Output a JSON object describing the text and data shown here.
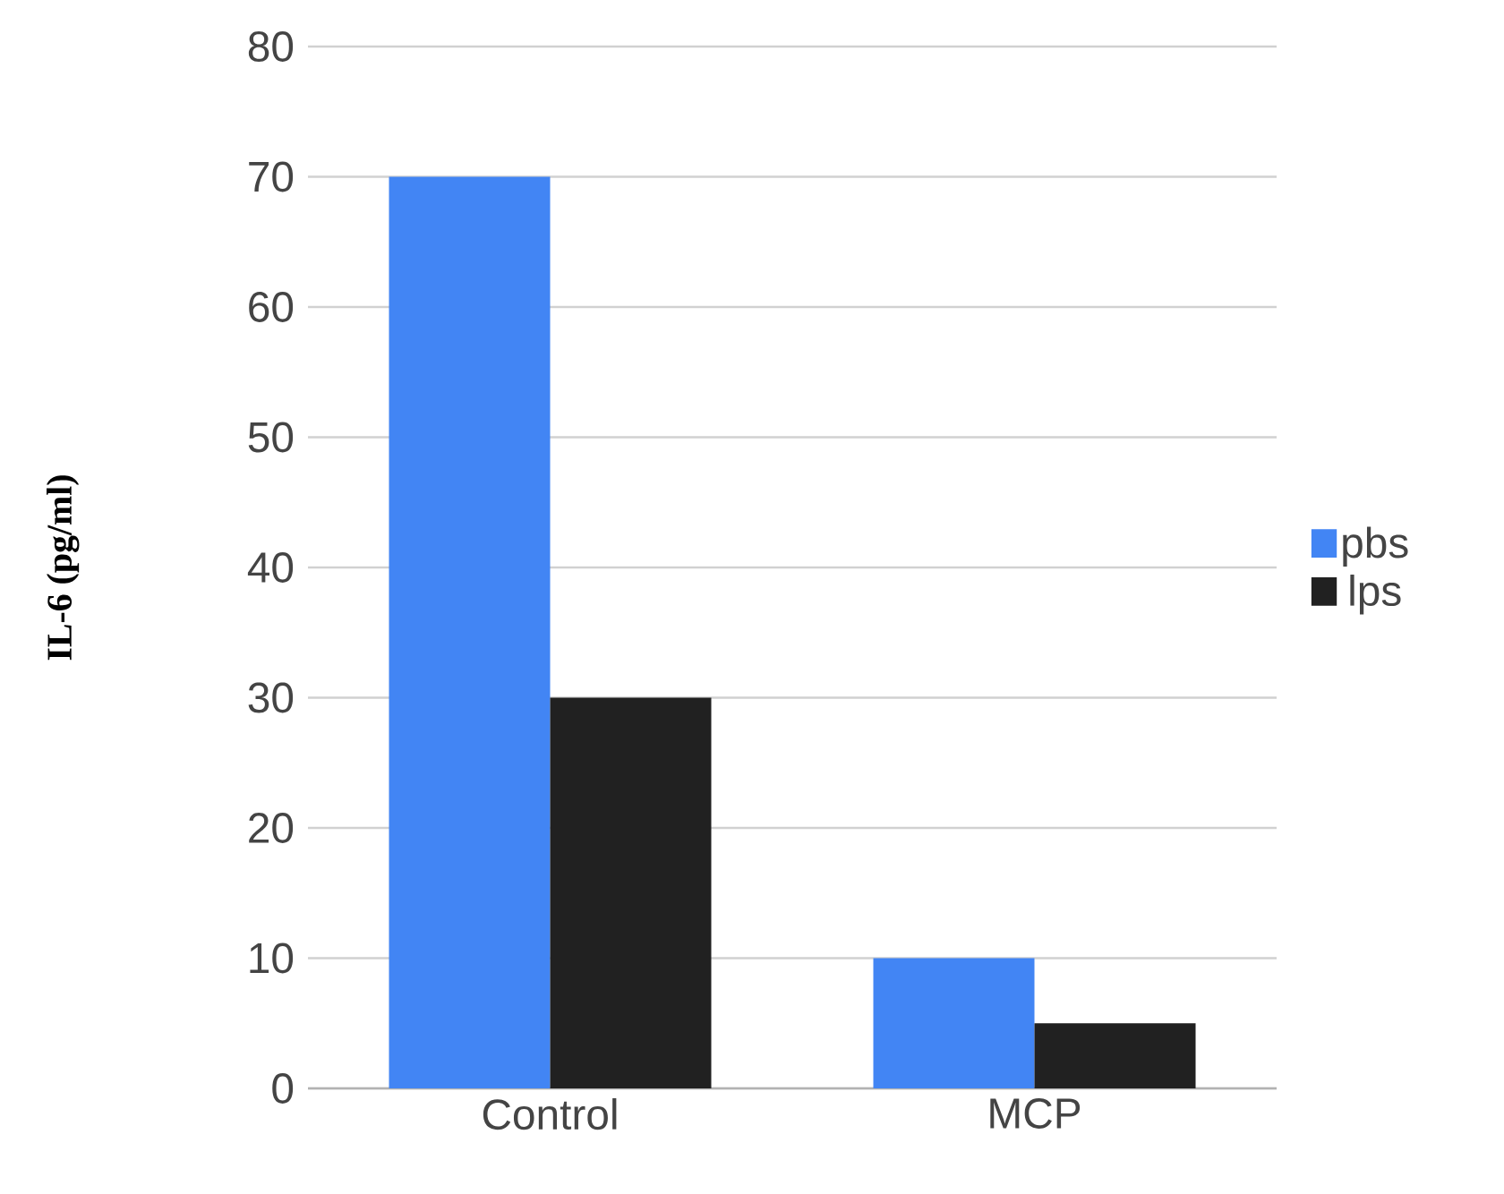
{
  "chart_data": {
    "type": "bar",
    "ylabel": "IL-6 (pg/ml)",
    "categories": [
      "Control",
      "MCP"
    ],
    "series": [
      {
        "name": "pbs",
        "color": "#4285f4",
        "values": [
          70,
          10
        ]
      },
      {
        "name": "lps",
        "color": "#212121",
        "values": [
          30,
          5
        ]
      }
    ],
    "ylim": [
      0,
      80
    ],
    "yticks": [
      0,
      10,
      20,
      30,
      40,
      50,
      60,
      70,
      80
    ],
    "grid": "y",
    "legend": "right"
  }
}
